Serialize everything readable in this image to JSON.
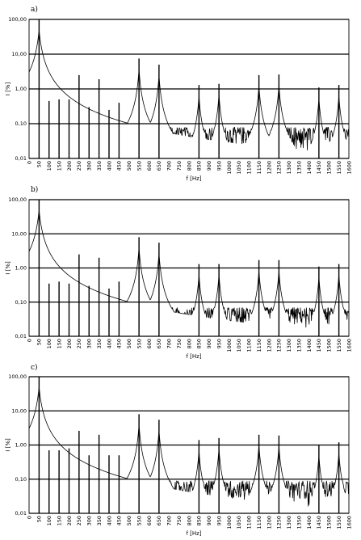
{
  "chart_data": [
    {
      "type": "line",
      "panel_label": "a)",
      "xlabel": "f  [Hz]",
      "ylabel": "I  [%]",
      "xlim": [
        0,
        1600
      ],
      "ylim": [
        0.01,
        100
      ],
      "y_scale": "log",
      "grid": "horizontal",
      "x_ticks": [
        "0",
        "50",
        "100",
        "150",
        "200",
        "250",
        "300",
        "350",
        "400",
        "450",
        "500",
        "550",
        "600",
        "650",
        "700",
        "750",
        "800",
        "850",
        "900",
        "950",
        "1000",
        "1050",
        "1100",
        "1150",
        "1200",
        "1250",
        "1300",
        "1350",
        "1400",
        "1450",
        "1500",
        "1550",
        "1600"
      ],
      "y_ticks": [
        "100,00",
        "10,00",
        "1,00",
        "0,10",
        "0,01"
      ],
      "y_tick_values": [
        100,
        10,
        1,
        0.1,
        0.01
      ],
      "peaks": {
        "f": [
          50,
          100,
          150,
          200,
          250,
          300,
          350,
          400,
          450,
          550,
          650,
          850,
          950,
          1150,
          1250,
          1450,
          1550
        ],
        "amplitude": [
          100,
          0.45,
          0.5,
          0.5,
          2.5,
          0.3,
          1.9,
          0.25,
          0.4,
          7.5,
          5.0,
          1.3,
          1.4,
          2.5,
          2.6,
          1.1,
          1.3
        ]
      },
      "resonance_peaks": [
        50,
        550,
        650,
        850,
        950,
        1150,
        1250,
        1450,
        1550
      ],
      "noise_floor": 0.04
    },
    {
      "type": "line",
      "panel_label": "b)",
      "xlabel": "f  [Hz]",
      "ylabel": "I  [%]",
      "xlim": [
        0,
        1600
      ],
      "ylim": [
        0.01,
        100
      ],
      "y_scale": "log",
      "grid": "horizontal",
      "x_ticks": [
        "0",
        "50",
        "100",
        "150",
        "200",
        "250",
        "300",
        "350",
        "400",
        "450",
        "500",
        "550",
        "600",
        "650",
        "700",
        "750",
        "800",
        "850",
        "900",
        "950",
        "1000",
        "1050",
        "1100",
        "1150",
        "1200",
        "1250",
        "1300",
        "1350",
        "1400",
        "1450",
        "1500",
        "1550",
        "1600"
      ],
      "y_ticks": [
        "100,00",
        "10,00",
        "1,00",
        "0,10",
        "0,01"
      ],
      "y_tick_values": [
        100,
        10,
        1,
        0.1,
        0.01
      ],
      "peaks": {
        "f": [
          50,
          100,
          150,
          200,
          250,
          300,
          350,
          400,
          450,
          550,
          650,
          850,
          950,
          1150,
          1250,
          1450,
          1550
        ],
        "amplitude": [
          100,
          0.35,
          0.4,
          0.35,
          2.5,
          0.3,
          2.0,
          0.25,
          0.4,
          8.0,
          5.5,
          1.3,
          1.3,
          1.7,
          1.7,
          1.1,
          1.3
        ]
      },
      "resonance_peaks": [
        50,
        550,
        650,
        850,
        950,
        1150,
        1250,
        1450,
        1550
      ],
      "noise_floor": 0.035
    },
    {
      "type": "line",
      "panel_label": "c)",
      "xlabel": "f  [Hz]",
      "ylabel": "I  [%]",
      "xlim": [
        0,
        1600
      ],
      "ylim": [
        0.01,
        100
      ],
      "y_scale": "log",
      "grid": "horizontal",
      "x_ticks": [
        "0",
        "50",
        "100",
        "150",
        "200",
        "250",
        "300",
        "350",
        "400",
        "450",
        "500",
        "550",
        "600",
        "650",
        "700",
        "750",
        "800",
        "850",
        "900",
        "950",
        "1000",
        "1050",
        "1100",
        "1150",
        "1200",
        "1250",
        "1300",
        "1350",
        "1400",
        "1450",
        "1500",
        "1550",
        "1600"
      ],
      "y_ticks": [
        "100,00",
        "10,00",
        "1,00",
        "0,10",
        "0,01"
      ],
      "y_tick_values": [
        100,
        10,
        1,
        0.1,
        0.01
      ],
      "peaks": {
        "f": [
          50,
          100,
          150,
          200,
          250,
          300,
          350,
          400,
          450,
          550,
          650,
          850,
          950,
          1150,
          1250,
          1450,
          1550
        ],
        "amplitude": [
          100,
          0.7,
          0.7,
          0.8,
          2.6,
          0.5,
          2.0,
          0.5,
          0.5,
          8.0,
          5.5,
          1.4,
          1.6,
          2.0,
          1.9,
          1.0,
          1.2
        ]
      },
      "resonance_peaks": [
        50,
        550,
        650,
        850,
        950,
        1150,
        1250,
        1450,
        1550
      ],
      "noise_floor": 0.045
    }
  ]
}
